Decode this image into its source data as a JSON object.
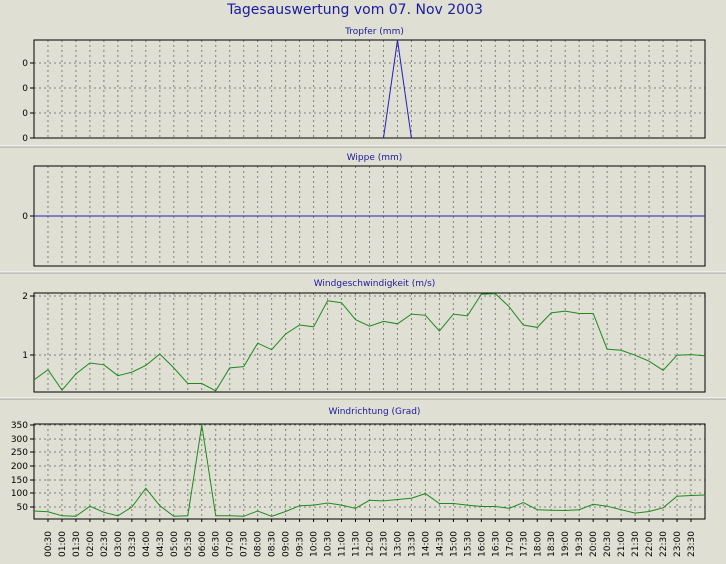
{
  "title": "Tagesauswertung vom 07. Nov 2003",
  "colors": {
    "background": "#dfdfd3",
    "title_text": "#1a1aa0",
    "panel_title_text": "#1a1aa0",
    "axis_text": "#000000",
    "grid": "#808080",
    "separator": "#ffffff",
    "series_blue": "#2020c0",
    "series_green": "#1e8a1e"
  },
  "x_ticks": [
    "00:30",
    "01:00",
    "01:30",
    "02:00",
    "02:30",
    "03:00",
    "03:30",
    "04:00",
    "04:30",
    "05:00",
    "05:30",
    "06:00",
    "06:30",
    "07:00",
    "07:30",
    "08:00",
    "08:30",
    "09:00",
    "09:30",
    "10:00",
    "10:30",
    "11:00",
    "11:30",
    "12:00",
    "12:30",
    "13:00",
    "13:30",
    "14:00",
    "14:30",
    "15:00",
    "15:30",
    "16:00",
    "16:30",
    "17:00",
    "17:30",
    "18:00",
    "18:30",
    "19:00",
    "19:30",
    "20:00",
    "20:30",
    "21:00",
    "21:30",
    "22:00",
    "22:30",
    "23:00",
    "23:30"
  ],
  "chart_data": [
    {
      "type": "line",
      "title": "Tropfer (mm)",
      "color": "#2020c0",
      "y_ticks": [
        "0",
        "0",
        "0",
        "0"
      ],
      "ylim": [
        0,
        1
      ],
      "x": [
        "12:30",
        "13:00",
        "13:30"
      ],
      "values": [
        0,
        1,
        0
      ],
      "grid": true
    },
    {
      "type": "line",
      "title": "Wippe (mm)",
      "color": "#2020c0",
      "y_ticks": [
        "0"
      ],
      "ylim": [
        -1,
        1
      ],
      "x": [
        "00:00",
        "24:00"
      ],
      "values": [
        0,
        0
      ],
      "grid": true
    },
    {
      "type": "line",
      "title": "Windgeschwindigkeit (m/s)",
      "color": "#1e8a1e",
      "y_ticks": [
        "2",
        "1"
      ],
      "ylim": [
        0.4,
        2.04
      ],
      "x": [
        "00:00",
        "00:30",
        "01:00",
        "01:30",
        "02:00",
        "02:30",
        "03:00",
        "03:30",
        "04:00",
        "04:30",
        "05:00",
        "05:30",
        "06:00",
        "06:30",
        "07:00",
        "07:30",
        "08:00",
        "08:30",
        "09:00",
        "09:30",
        "10:00",
        "10:30",
        "11:00",
        "11:30",
        "12:00",
        "12:30",
        "13:00",
        "13:30",
        "14:00",
        "14:30",
        "15:00",
        "15:30",
        "16:00",
        "16:30",
        "17:00",
        "17:30",
        "18:00",
        "18:30",
        "19:00",
        "19:30",
        "20:00",
        "20:30",
        "21:00",
        "21:30",
        "22:00",
        "22:30",
        "23:00",
        "23:30",
        "24:00"
      ],
      "values": [
        0.6,
        0.77,
        0.43,
        0.7,
        0.88,
        0.85,
        0.67,
        0.73,
        0.84,
        1.03,
        0.8,
        0.54,
        0.54,
        0.42,
        0.8,
        0.82,
        1.21,
        1.1,
        1.36,
        1.51,
        1.48,
        1.91,
        1.88,
        1.6,
        1.49,
        1.57,
        1.53,
        1.69,
        1.67,
        1.41,
        1.69,
        1.66,
        2.02,
        2.03,
        1.81,
        1.51,
        1.47,
        1.71,
        1.74,
        1.7,
        1.7,
        1.11,
        1.09,
        1.01,
        0.91,
        0.76,
        1.01,
        1.02,
        1.0
      ],
      "grid": true
    },
    {
      "type": "line",
      "title": "Windrichtung (Grad)",
      "color": "#1e8a1e",
      "y_ticks": [
        "350",
        "300",
        "250",
        "200",
        "150",
        "100",
        "50"
      ],
      "ylim": [
        0,
        356
      ],
      "x": [
        "00:00",
        "00:30",
        "01:00",
        "01:30",
        "02:00",
        "02:30",
        "03:00",
        "03:30",
        "04:00",
        "04:30",
        "05:00",
        "05:30",
        "06:00",
        "06:30",
        "07:00",
        "07:30",
        "08:00",
        "08:30",
        "09:00",
        "09:30",
        "10:00",
        "10:30",
        "11:00",
        "11:30",
        "12:00",
        "12:30",
        "13:00",
        "13:30",
        "14:00",
        "14:30",
        "15:00",
        "15:30",
        "16:00",
        "16:30",
        "17:00",
        "17:30",
        "18:00",
        "18:30",
        "19:00",
        "19:30",
        "20:00",
        "20:30",
        "21:00",
        "21:30",
        "22:00",
        "22:30",
        "23:00",
        "23:30",
        "24:00"
      ],
      "values": [
        30,
        27,
        12,
        10,
        48,
        25,
        12,
        45,
        115,
        50,
        10,
        12,
        352,
        12,
        12,
        10,
        30,
        10,
        28,
        50,
        52,
        60,
        52,
        40,
        70,
        68,
        73,
        78,
        95,
        58,
        58,
        52,
        47,
        47,
        40,
        62,
        35,
        33,
        32,
        35,
        55,
        48,
        35,
        22,
        28,
        42,
        85,
        88,
        90
      ],
      "grid": true
    }
  ]
}
